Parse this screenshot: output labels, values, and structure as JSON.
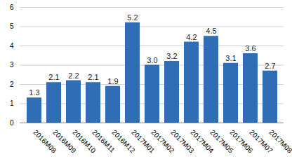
{
  "chart_data": {
    "type": "bar",
    "categories": [
      "2016M08",
      "2016M09",
      "2016M10",
      "2016M11",
      "2016M12",
      "2017M01",
      "2017M02",
      "2017M03",
      "2017M04",
      "2017M05",
      "2017M06",
      "2017M07",
      "2017M08"
    ],
    "values": [
      1.3,
      2.1,
      2.2,
      2.1,
      1.9,
      5.2,
      3.0,
      3.2,
      4.2,
      4.5,
      3.1,
      3.6,
      2.7
    ],
    "value_labels": [
      "1.3",
      "2.1",
      "2.2",
      "2.1",
      "1.9",
      "5.2",
      "3.0",
      "3.2",
      "4.2",
      "4.5",
      "3.1",
      "3.6",
      "2.7"
    ],
    "color": "#2f6eb5",
    "ylim": [
      0,
      6
    ],
    "yticks": [
      0,
      1,
      2,
      3,
      4,
      5,
      6
    ],
    "grid": true,
    "data_labels": true
  }
}
